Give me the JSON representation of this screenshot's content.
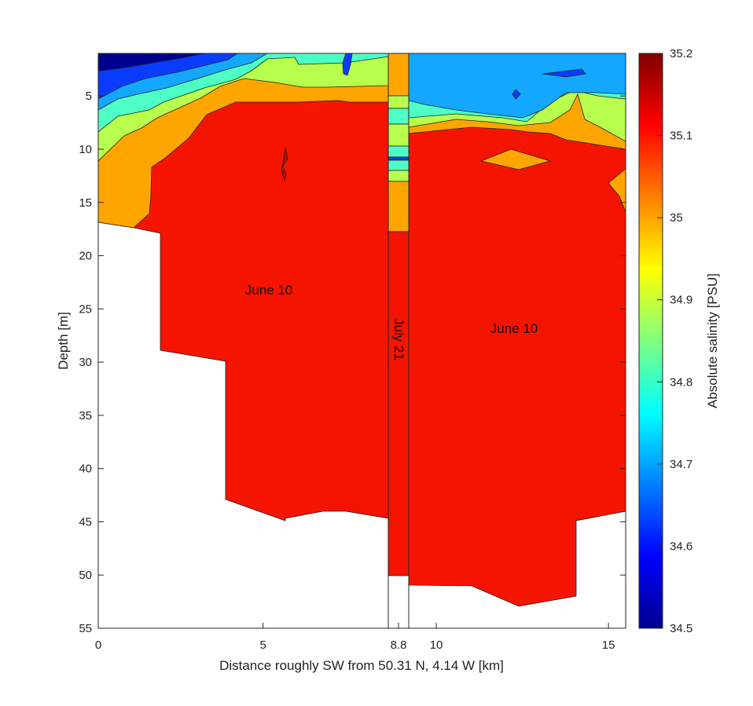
{
  "chart_data": {
    "type": "heatmap",
    "xlabel": "Distance roughly SW from 50.31 N, 4.14 W [km]",
    "ylabel": "Depth [m]",
    "colorbar_label": "Absolute salinity [PSU]",
    "xlim": [
      0,
      15.5
    ],
    "ylim": [
      55,
      1
    ],
    "y_reversed": true,
    "x_ticks": [
      {
        "value": 0,
        "label": "0"
      },
      {
        "value": 5,
        "label": "5"
      },
      {
        "value": 8.8,
        "label": "8.8"
      },
      {
        "value": 10,
        "label": "10"
      },
      {
        "value": 15,
        "label": "15"
      }
    ],
    "y_ticks": [
      "5",
      "10",
      "15",
      "20",
      "25",
      "30",
      "35",
      "40",
      "45",
      "50",
      "55"
    ],
    "colorbar": {
      "range": [
        34.5,
        35.2
      ],
      "ticks": [
        "34.5",
        "34.6",
        "34.7",
        "34.8",
        "34.9",
        "35",
        "35.1",
        "35.2"
      ],
      "colormap": "jet"
    },
    "panels": [
      {
        "name": "June 10",
        "x_range": [
          0,
          8.8
        ],
        "max_depth_m": 45
      },
      {
        "name": "July 21",
        "x_range": [
          8.8,
          9.2
        ],
        "max_depth_m": 50
      },
      {
        "name": "June 10",
        "x_range": [
          9.2,
          15.5
        ],
        "max_depth_m": 53
      }
    ],
    "salinity_bands": [
      {
        "range": "34.5–34.6",
        "color": "#00008f"
      },
      {
        "range": "34.6–34.7",
        "color": "#0a3cff"
      },
      {
        "range": "34.7–34.8",
        "color": "#13a7ff"
      },
      {
        "range": "34.8–34.9",
        "color": "#4dffc4"
      },
      {
        "range": "34.9–35.0",
        "color": "#b8ff4d"
      },
      {
        "range": "35.0–35.1",
        "color": "#ffa500"
      },
      {
        "range": "35.1–35.2",
        "color": "#f51400"
      }
    ],
    "annotations": [
      "June 10",
      "July 21",
      "June 10"
    ]
  }
}
